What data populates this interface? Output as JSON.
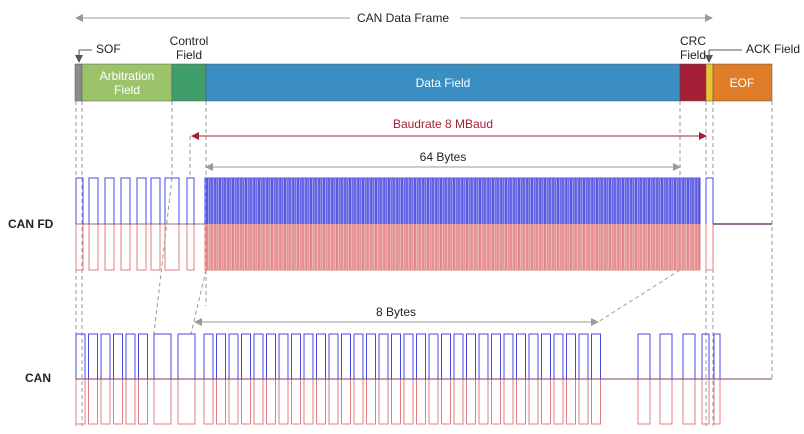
{
  "title": "CAN Data Frame",
  "fields": {
    "sof": "SOF",
    "arbitration_1": "Arbitration",
    "arbitration_2": "Field",
    "control_1": "Control",
    "control_2": "Field",
    "data": "Data Field",
    "crc_1": "CRC",
    "crc_2": "Field",
    "ack": "ACK Field",
    "eof": "EOF"
  },
  "annotations": {
    "baudrate": "Baudrate 8 MBaud",
    "fd_bytes": "64 Bytes",
    "can_bytes": "8 Bytes"
  },
  "rows": {
    "canfd": "CAN FD",
    "can": "CAN"
  },
  "colors": {
    "sof": "#8c8c8c",
    "arbitration": "#9bc46a",
    "control": "#3f9e6c",
    "data": "#3a8ec2",
    "crc": "#a51f36",
    "ack": "#f2c12e",
    "eof": "#e07d29",
    "signal_high": "#4a4ae0",
    "signal_low": "#e07f7f",
    "baudrate": "#a51f36"
  }
}
